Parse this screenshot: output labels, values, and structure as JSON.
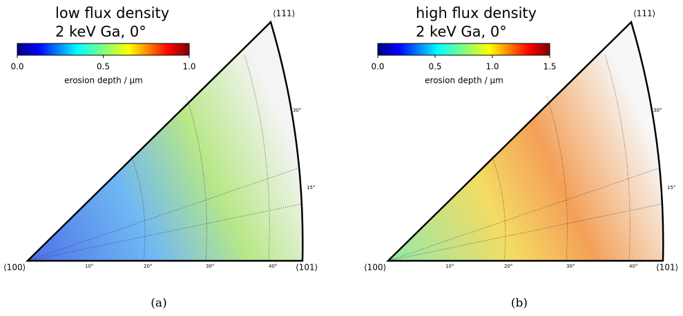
{
  "chart_data": [
    {
      "type": "pole-figure",
      "title": "low flux density",
      "subtitle": "2 keV Ga, 0°",
      "colormap": "jet",
      "clim": [
        0,
        1.0
      ],
      "cticks": [
        {
          "value": 0,
          "label": "0.0"
        },
        0.5,
        {
          "value": 1.0,
          "label": "1.0"
        }
      ],
      "colorbar_label": "erosion depth / μm",
      "corners": [
        "⟨100⟩",
        "⟨101⟩",
        "⟨111⟩"
      ],
      "angle_labels": [
        "10°",
        "20°",
        "30°",
        "40°",
        "15°",
        "30°"
      ],
      "caption": "(a)"
    },
    {
      "type": "pole-figure",
      "title": "high flux density",
      "subtitle": "2 keV Ga, 0°",
      "colormap": "jet",
      "clim": [
        0,
        1.5
      ],
      "cticks": [
        {
          "value": 0,
          "label": "0.0"
        },
        0.5,
        {
          "value": 1.0,
          "label": "1.0"
        },
        1.5
      ],
      "colorbar_label": "erosion depth / μm",
      "corners": [
        "⟨100⟩",
        "⟨101⟩",
        "⟨111⟩"
      ],
      "angle_labels": [
        "10°",
        "20°",
        "30°",
        "40°",
        "15°",
        "30°"
      ],
      "caption": "(b)"
    }
  ]
}
